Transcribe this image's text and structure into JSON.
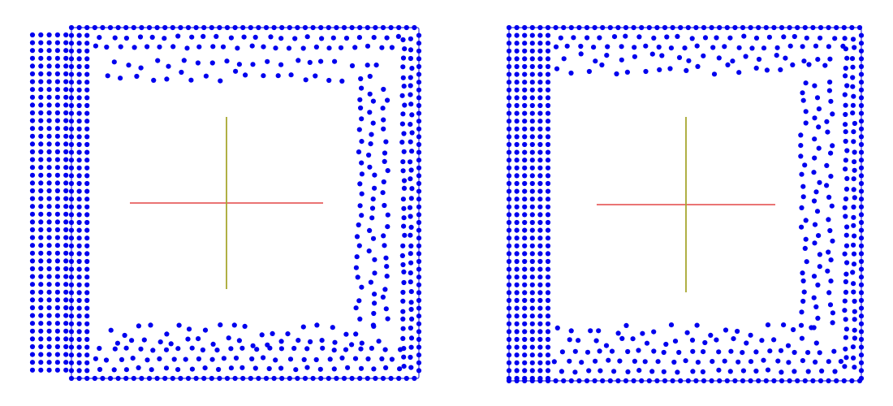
{
  "colors": {
    "background": "#ffffff",
    "points": "#0000ee",
    "boundary": "#3a3ad8",
    "axis_x": "#dd2222",
    "axis_y": "#a8a830"
  },
  "panels": [
    {
      "name": "left-mesh-panel",
      "description_none": ""
    },
    {
      "name": "right-mesh-panel",
      "description_none": ""
    }
  ]
}
